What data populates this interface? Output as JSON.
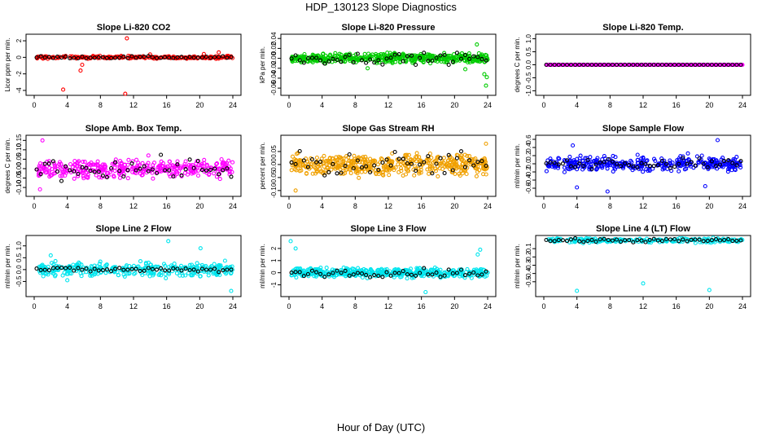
{
  "title": "HDP_130123  Slope Diagnostics",
  "xlabel": "Hour of Day (UTC)",
  "chart_data": [
    {
      "type": "scatter",
      "title": "Slope Li-820 CO2",
      "ylabel": "Licor ppm per min.",
      "xlim": [
        0,
        24
      ],
      "ylim": [
        -4.2,
        2.4
      ],
      "yticks": [
        "-4",
        "-2",
        "0",
        "2"
      ],
      "ytick_values": [
        -4,
        -2,
        0,
        2
      ],
      "color": "#ff0000",
      "spread": 0.15,
      "density": 2,
      "outliers": [
        {
          "x": 3.5,
          "y": -3.9
        },
        {
          "x": 5.8,
          "y": -0.9
        },
        {
          "x": 5.6,
          "y": -1.6
        },
        {
          "x": 11.2,
          "y": 2.3
        },
        {
          "x": 11.0,
          "y": -4.4
        },
        {
          "x": 22.3,
          "y": 0.6
        },
        {
          "x": 20.5,
          "y": 0.4
        },
        {
          "x": 14.0,
          "y": 0.35
        }
      ],
      "black_spread": 0.12
    },
    {
      "type": "scatter",
      "title": "Slope Li-820 Pressure",
      "ylabel": "kPa per min.",
      "xlim": [
        0,
        24
      ],
      "ylim": [
        -0.068,
        0.042
      ],
      "yticks": [
        "-0.06",
        "-0.04",
        "-0.02",
        "0.00",
        "0.02",
        "0.04"
      ],
      "ytick_values": [
        -0.06,
        -0.04,
        -0.02,
        0,
        0.02,
        0.04
      ],
      "color": "#00cc00",
      "spread": 0.009,
      "density": 4,
      "outliers": [
        {
          "x": 22.7,
          "y": 0.028
        },
        {
          "x": 23.8,
          "y": -0.055
        },
        {
          "x": 23.9,
          "y": -0.038
        },
        {
          "x": 23.6,
          "y": -0.032
        },
        {
          "x": 9.5,
          "y": -0.02
        },
        {
          "x": 21.3,
          "y": -0.022
        }
      ],
      "black_spread": 0.01
    },
    {
      "type": "scatter",
      "title": "Slope Li-820 Temp.",
      "ylabel": "degrees C per min.",
      "xlim": [
        0,
        24
      ],
      "ylim": [
        -1.05,
        1.05
      ],
      "yticks": [
        "-1.0",
        "-0.5",
        "0.0",
        "0.5",
        "1.0"
      ],
      "ytick_values": [
        -1,
        -0.5,
        0,
        0.5,
        1
      ],
      "color": "#ff00ff",
      "spread": 0.0,
      "density": 3,
      "outliers": [],
      "black_spread": 0.0
    },
    {
      "type": "scatter",
      "title": "Slope Amb. Box Temp.",
      "ylabel": "degrees C per min.",
      "xlim": [
        0,
        24
      ],
      "ylim": [
        -0.13,
        0.16
      ],
      "yticks": [
        "-0.10",
        "-0.05",
        "0.00",
        "0.05",
        "0.10",
        "0.15"
      ],
      "ytick_values": [
        -0.1,
        -0.05,
        0,
        0.05,
        0.1,
        0.15
      ],
      "color": "#ff00ff",
      "spread": 0.045,
      "density": 3,
      "outliers": [
        {
          "x": 1.0,
          "y": 0.15
        },
        {
          "x": 0.7,
          "y": -0.11
        },
        {
          "x": 13.8,
          "y": 0.07
        }
      ],
      "black_spread": 0.05
    },
    {
      "type": "scatter",
      "title": "Slope Gas Stream RH",
      "ylabel": "percent per min.",
      "xlim": [
        0,
        24
      ],
      "ylim": [
        -0.11,
        0.1
      ],
      "yticks": [
        "-0.10",
        "-0.05",
        "0.00",
        "0.05"
      ],
      "ytick_values": [
        -0.1,
        -0.05,
        0,
        0.05
      ],
      "color": "#f0a000",
      "spread": 0.04,
      "density": 4,
      "outliers": [
        {
          "x": 0.8,
          "y": -0.1
        },
        {
          "x": 23.8,
          "y": 0.08
        }
      ],
      "black_spread": 0.045
    },
    {
      "type": "scatter",
      "title": "Slope Sample Flow",
      "ylabel": "ml/min per min.",
      "xlim": [
        0,
        24
      ],
      "ylim": [
        -0.72,
        0.62
      ],
      "yticks": [
        "-0.6",
        "-0.4",
        "-0.2",
        "0.0",
        "0.2",
        "0.4",
        "0.6"
      ],
      "ytick_values": [
        -0.6,
        -0.4,
        -0.2,
        0,
        0.2,
        0.4,
        0.6
      ],
      "color": "#0000ff",
      "spread": 0.17,
      "density": 3,
      "outliers": [
        {
          "x": 7.7,
          "y": -0.68
        },
        {
          "x": 4.0,
          "y": -0.58
        },
        {
          "x": 21.0,
          "y": 0.58
        },
        {
          "x": 19.5,
          "y": -0.55
        },
        {
          "x": 3.5,
          "y": 0.45
        }
      ],
      "black_spread": 0.12
    },
    {
      "type": "scatter",
      "title": "Slope Line 2 Flow",
      "ylabel": "ml/min per min.",
      "xlim": [
        0,
        24
      ],
      "ylim": [
        -1.0,
        1.3
      ],
      "yticks": [
        "-0.5",
        "0.0",
        "0.5",
        "1.0"
      ],
      "ytick_values": [
        -0.5,
        0,
        0.5,
        1
      ],
      "color": "#00e5ee",
      "spread": 0.25,
      "density": 3,
      "outliers": [
        {
          "x": 16.2,
          "y": 1.2
        },
        {
          "x": 23.8,
          "y": -0.9
        },
        {
          "x": 20.1,
          "y": 0.9
        },
        {
          "x": 2.0,
          "y": 0.6
        },
        {
          "x": 4.0,
          "y": -0.45
        }
      ],
      "black_spread": 0.1
    },
    {
      "type": "scatter",
      "title": "Slope Line 3 Flow",
      "ylabel": "ml/min per min.",
      "xlim": [
        0,
        24
      ],
      "ylim": [
        -1.7,
        2.8
      ],
      "yticks": [
        "-1",
        "0",
        "1",
        "2"
      ],
      "ytick_values": [
        -1,
        0,
        1,
        2
      ],
      "color": "#00e5ee",
      "spread": 0.35,
      "density": 4,
      "outliers": [
        {
          "x": 0.2,
          "y": 2.6
        },
        {
          "x": 0.8,
          "y": 2.0
        },
        {
          "x": 16.5,
          "y": -1.6
        },
        {
          "x": 23.1,
          "y": 1.9
        },
        {
          "x": 22.8,
          "y": 1.5
        }
      ],
      "black_spread": 0.3
    },
    {
      "type": "scatter",
      "title": "Slope Line 4 (LT) Flow",
      "ylabel": "ml/min per min.",
      "xlim": [
        0,
        24
      ],
      "ylim": [
        -0.64,
        0.02
      ],
      "yticks": [
        "-0.5",
        "-0.4",
        "-0.3",
        "-0.2",
        "-0.1"
      ],
      "ytick_values": [
        -0.5,
        -0.4,
        -0.3,
        -0.2,
        -0.1
      ],
      "color": "#00e5ee",
      "spread": 0.025,
      "density": 2,
      "outliers": [
        {
          "x": 4.0,
          "y": -0.61
        },
        {
          "x": 12.0,
          "y": -0.52
        },
        {
          "x": 20.0,
          "y": -0.6
        }
      ],
      "black_spread": 0.02
    }
  ],
  "xticks": [
    "0",
    "4",
    "8",
    "12",
    "16",
    "20",
    "24"
  ],
  "xtick_values": [
    0,
    4,
    8,
    12,
    16,
    20,
    24
  ],
  "black_color": "#000000"
}
